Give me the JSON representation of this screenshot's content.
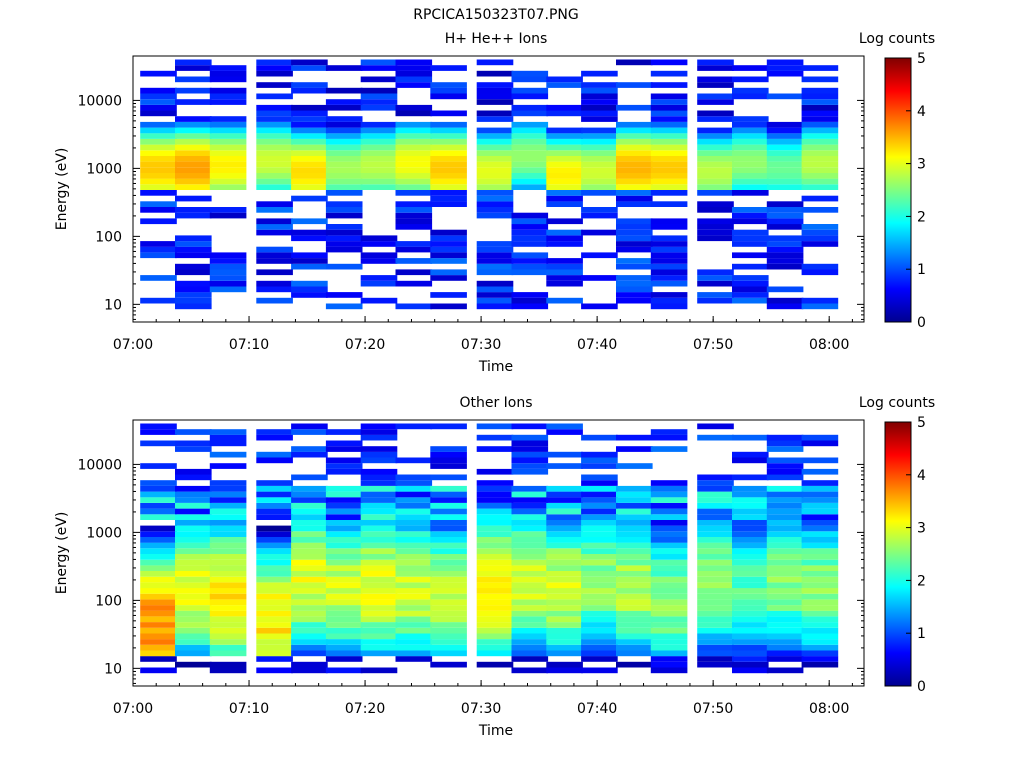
{
  "figure": {
    "title": "RPCICA150323T07.PNG"
  },
  "colormap": [
    "#00008f",
    "#0000ff",
    "#0080ff",
    "#00ffff",
    "#80ff80",
    "#ffff00",
    "#ff8000",
    "#ff0000",
    "#800000"
  ],
  "chart_data": [
    {
      "type": "heatmap",
      "title": "H+ He++ Ions",
      "xlabel": "Time",
      "ylabel": "Energy (eV)",
      "x_ticks": [
        "07:00",
        "07:10",
        "07:20",
        "07:30",
        "07:40",
        "07:50",
        "08:00"
      ],
      "y_ticks": [
        "10",
        "100",
        "1000",
        "10000"
      ],
      "y_scale": "log",
      "ylim": [
        5.5,
        45000
      ],
      "xlim": [
        "07:00",
        "08:03"
      ],
      "colorbar": {
        "label": "Log counts",
        "ticks": [
          "0",
          "1",
          "2",
          "3",
          "4",
          "5"
        ],
        "range": [
          0,
          5
        ]
      },
      "time_bins": [
        "07:02",
        "07:05",
        "07:08",
        "07:12",
        "07:15",
        "07:18",
        "07:21",
        "07:24",
        "07:27",
        "07:31",
        "07:34",
        "07:37",
        "07:40",
        "07:43",
        "07:46",
        "07:50",
        "07:53",
        "07:56",
        "07:59"
      ],
      "peak_log_counts": [
        3.4,
        3.6,
        3.2,
        2.9,
        3.3,
        2.7,
        2.8,
        3.1,
        3.4,
        3.0,
        2.6,
        3.2,
        2.9,
        3.5,
        3.4,
        2.8,
        2.6,
        2.4,
        2.8
      ],
      "peak_energy_eV": [
        1000,
        1000,
        1100,
        1300,
        900,
        1000,
        1100,
        1200,
        1000,
        900,
        1500,
        800,
        900,
        1000,
        1000,
        900,
        1200,
        1000,
        1200
      ],
      "sparse_low_energy": true
    },
    {
      "type": "heatmap",
      "title": "Other Ions",
      "xlabel": "Time",
      "ylabel": "Energy (eV)",
      "x_ticks": [
        "07:00",
        "07:10",
        "07:20",
        "07:30",
        "07:40",
        "07:50",
        "08:00"
      ],
      "y_ticks": [
        "10",
        "100",
        "1000",
        "10000"
      ],
      "y_scale": "log",
      "ylim": [
        5.5,
        45000
      ],
      "xlim": [
        "07:00",
        "08:03"
      ],
      "colorbar": {
        "label": "Log counts",
        "ticks": [
          "0",
          "1",
          "2",
          "3",
          "4",
          "5"
        ],
        "range": [
          0,
          5
        ]
      },
      "time_bins": [
        "07:02",
        "07:05",
        "07:08",
        "07:12",
        "07:15",
        "07:18",
        "07:21",
        "07:24",
        "07:27",
        "07:31",
        "07:34",
        "07:37",
        "07:40",
        "07:43",
        "07:46",
        "07:50",
        "07:53",
        "07:56",
        "07:59"
      ],
      "peak_log_counts": [
        3.7,
        3.0,
        3.2,
        3.2,
        3.0,
        2.9,
        3.0,
        2.9,
        2.8,
        3.2,
        2.9,
        2.9,
        2.6,
        2.8,
        2.6,
        2.7,
        2.3,
        2.6,
        2.6
      ],
      "peak_energy_eV": [
        40,
        150,
        120,
        50,
        200,
        150,
        150,
        150,
        120,
        150,
        200,
        150,
        200,
        150,
        100,
        200,
        150,
        200,
        150
      ],
      "sparse_low_energy": false
    }
  ]
}
